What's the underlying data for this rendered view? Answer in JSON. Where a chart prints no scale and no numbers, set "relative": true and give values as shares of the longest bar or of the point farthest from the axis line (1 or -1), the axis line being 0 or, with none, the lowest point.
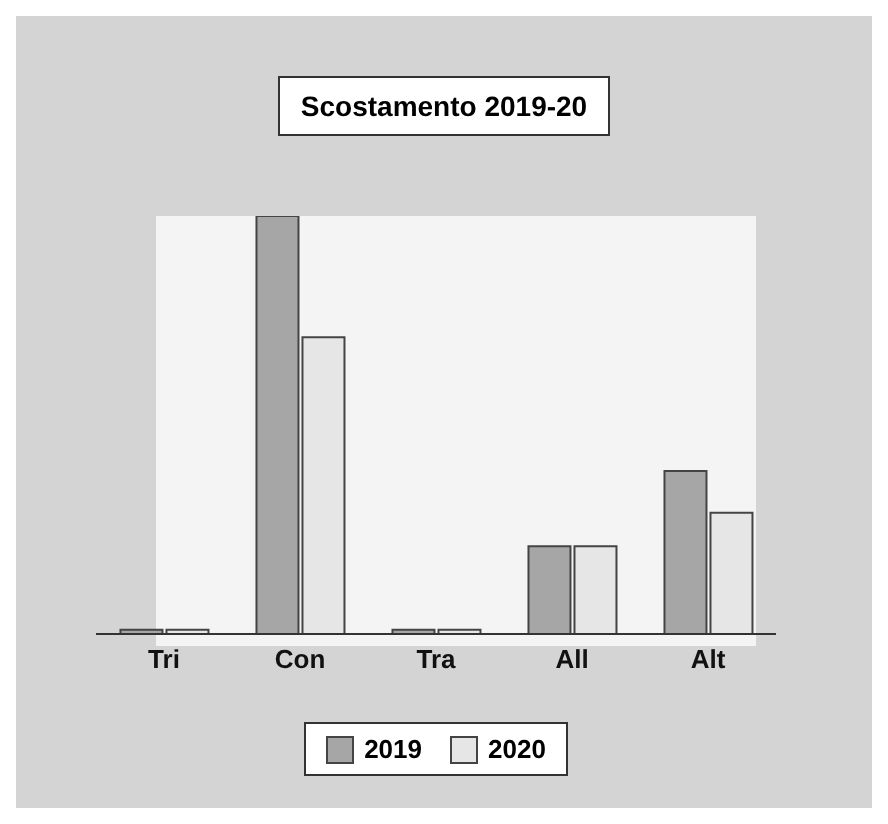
{
  "chart_data": {
    "type": "bar",
    "title": "Scostamento 2019-20",
    "categories": [
      "Tri",
      "Con",
      "Tra",
      "All",
      "Alt"
    ],
    "relative": true,
    "legend": "bottom",
    "series": [
      {
        "name": "2019",
        "color": "#a6a6a6",
        "values": [
          0.01,
          1,
          0.01,
          0.21,
          0.39
        ]
      },
      {
        "name": "2020",
        "color": "#e6e6e6",
        "values": [
          0.01,
          0.71,
          0.01,
          0.21,
          0.29
        ]
      }
    ]
  }
}
